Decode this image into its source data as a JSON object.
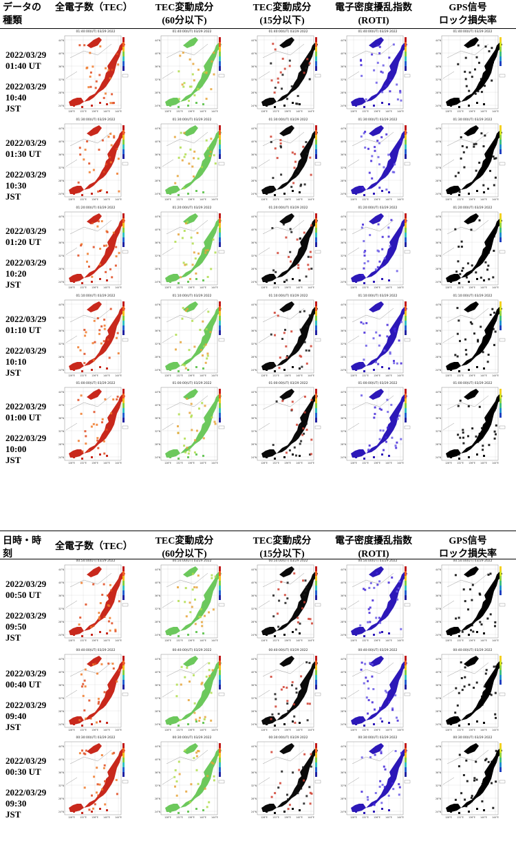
{
  "header_top": {
    "col0": [
      "データの",
      "種類"
    ],
    "col1": [
      "全電子数（TEC）"
    ],
    "col2": [
      "TEC変動成分",
      "(60分以下)"
    ],
    "col3": [
      "TEC変動成分",
      "(15分以下)"
    ],
    "col4": [
      "電子密度擾乱指数",
      "(ROTI)"
    ],
    "col5": [
      "GPS信号",
      "ロック損失率"
    ]
  },
  "header_mid": {
    "col0": [
      "日時・時",
      "刻"
    ],
    "col1": [
      "全電子数（TEC）"
    ],
    "col2": [
      "TEC変動成分",
      "(60分以下)"
    ],
    "col3": [
      "TEC変動成分",
      "(15分以下)"
    ],
    "col4": [
      "電子密度擾乱指数",
      "(ROTI)"
    ],
    "col5": [
      "GPS信号",
      "ロック損失率"
    ]
  },
  "rows": [
    {
      "date1": "2022/03/29",
      "ut": "01:40 UT",
      "date2": "2022/03/29",
      "jst_time": "10:40",
      "jst": "JST",
      "stamp": "01:40:00(UT) 03/29 2022"
    },
    {
      "date1": "2022/03/29",
      "ut": "01:30 UT",
      "date2": "2022/03/29",
      "jst_time": "10:30",
      "jst": "JST",
      "stamp": "01:30:00(UT) 03/29 2022"
    },
    {
      "date1": "2022/03/29",
      "ut": "01:20 UT",
      "date2": "2022/03/29",
      "jst_time": "10:20",
      "jst": "JST",
      "stamp": "01:20:00(UT) 03/29 2022"
    },
    {
      "date1": "2022/03/29",
      "ut": "01:10 UT",
      "date2": "2022/03/29",
      "jst_time": "10:10",
      "jst": "JST",
      "stamp": "01:10:00(UT) 03/29 2022"
    },
    {
      "date1": "2022/03/29",
      "ut": "01:00 UT",
      "date2": "2022/03/29",
      "jst_time": "10:00",
      "jst": "JST",
      "stamp": "01:00:00(UT) 03/29 2022"
    },
    {
      "date1": "2022/03/29",
      "ut": "00:50 UT",
      "date2": "2022/03/29",
      "jst_time": "09:50",
      "jst": "JST",
      "stamp": "00:50:00(UT) 03/29 2022"
    },
    {
      "date1": "2022/03/29",
      "ut": "00:40 UT",
      "date2": "2022/03/29",
      "jst_time": "09:40",
      "jst": "JST",
      "stamp": "00:40:00(UT) 03/29 2022"
    },
    {
      "date1": "2022/03/29",
      "ut": "00:30 UT",
      "date2": "2022/03/29",
      "jst_time": "09:30",
      "jst": "JST",
      "stamp": "00:30:00(UT) 03/29 2022"
    }
  ],
  "map_axes": {
    "lat_ticks": [
      "44°N",
      "40°N",
      "36°N",
      "32°N",
      "28°N",
      "24°N"
    ],
    "lon_ticks": [
      "128°E",
      "132°E",
      "136°E",
      "140°E",
      "144°E"
    ]
  },
  "panel_colors": {
    "tec": "#d93020",
    "tec60": "#7fd36a",
    "tec15": "#0a0a0a",
    "roti": "#3a20c8",
    "gps": "#000000"
  }
}
